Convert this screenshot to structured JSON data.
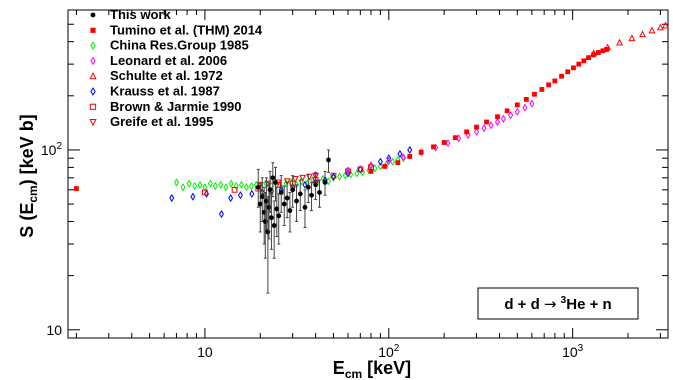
{
  "chart_data": {
    "type": "scatter",
    "title": "",
    "xlabel": {
      "main": "E",
      "sub": "cm",
      "rest": " [keV]"
    },
    "ylabel": {
      "main": "S (E",
      "sub": "cm",
      "rest": ") [keV b]"
    },
    "x_scale": "log",
    "y_scale": "log",
    "xlim": [
      1.8,
      3300
    ],
    "ylim": [
      9,
      600
    ],
    "x_ticks": [
      {
        "value": 10,
        "base": "10",
        "exp": ""
      },
      {
        "value": 100,
        "base": "10",
        "exp": "2"
      },
      {
        "value": 1000,
        "base": "10",
        "exp": "3"
      }
    ],
    "y_ticks": [
      {
        "value": 10,
        "base": "10",
        "exp": ""
      },
      {
        "value": 100,
        "base": "10",
        "exp": "2"
      }
    ],
    "grid": false,
    "legend_position": "top-left",
    "annotation": {
      "pre": "d + d ",
      "arrow": "→",
      "sup": "3",
      "post": "He + n"
    },
    "series": [
      {
        "name": "This work",
        "marker": "dot-filled",
        "color": "#000000",
        "points": [
          [
            19.5,
            62,
            48,
            78
          ],
          [
            20.0,
            50,
            35,
            65
          ],
          [
            20.5,
            55,
            40,
            70
          ],
          [
            21.0,
            45,
            30,
            62
          ],
          [
            21.3,
            40,
            25,
            58
          ],
          [
            21.6,
            52,
            36,
            70
          ],
          [
            22.0,
            35,
            16,
            55
          ],
          [
            22.3,
            48,
            32,
            66
          ],
          [
            22.6,
            60,
            45,
            76
          ],
          [
            23.0,
            42,
            28,
            58
          ],
          [
            23.4,
            70,
            55,
            85
          ],
          [
            23.8,
            38,
            25,
            52
          ],
          [
            24.2,
            66,
            52,
            80
          ],
          [
            24.6,
            47,
            33,
            62
          ],
          [
            25.2,
            43,
            30,
            57
          ],
          [
            26.0,
            58,
            45,
            72
          ],
          [
            27.0,
            50,
            38,
            63
          ],
          [
            28.0,
            54,
            42,
            66
          ],
          [
            29.0,
            46,
            35,
            58
          ],
          [
            30.0,
            60,
            48,
            72
          ],
          [
            31.5,
            52,
            40,
            64
          ],
          [
            33.0,
            57,
            46,
            68
          ],
          [
            35.0,
            48,
            37,
            60
          ],
          [
            36.5,
            62,
            51,
            73
          ],
          [
            38.0,
            56,
            46,
            66
          ],
          [
            40.0,
            64,
            53,
            75
          ],
          [
            42.0,
            58,
            48,
            68
          ],
          [
            45.0,
            66,
            56,
            76
          ],
          [
            47.0,
            88,
            75,
            100
          ]
        ]
      },
      {
        "name": "Tumino et al. (THM) 2014",
        "marker": "square-filled",
        "color": "#ff0000",
        "points": [
          [
            2.0,
            61
          ],
          [
            80,
            76
          ],
          [
            95,
            81
          ],
          [
            112,
            85
          ],
          [
            130,
            92
          ],
          [
            150,
            97
          ],
          [
            175,
            104
          ],
          [
            200,
            110
          ],
          [
            230,
            117
          ],
          [
            265,
            126
          ],
          [
            300,
            134
          ],
          [
            340,
            143
          ],
          [
            390,
            153
          ],
          [
            440,
            165
          ],
          [
            500,
            178
          ],
          [
            560,
            191
          ],
          [
            620,
            204
          ],
          [
            680,
            217
          ],
          [
            740,
            230
          ],
          [
            800,
            242
          ],
          [
            870,
            257
          ],
          [
            940,
            272
          ],
          [
            1010,
            286
          ],
          [
            1080,
            300
          ],
          [
            1150,
            313
          ],
          [
            1220,
            326
          ],
          [
            1300,
            338
          ],
          [
            1380,
            348
          ],
          [
            1460,
            356
          ],
          [
            1530,
            362
          ]
        ]
      },
      {
        "name": "China Res.Group 1985",
        "marker": "diamond-open",
        "color": "#00ee00",
        "points": [
          [
            7.0,
            66
          ],
          [
            7.6,
            62
          ],
          [
            8.2,
            65
          ],
          [
            8.8,
            63
          ],
          [
            9.4,
            64
          ],
          [
            10.0,
            62
          ],
          [
            10.7,
            65
          ],
          [
            11.4,
            63
          ],
          [
            12.2,
            64
          ],
          [
            13.0,
            62
          ],
          [
            13.9,
            65
          ],
          [
            14.8,
            63
          ],
          [
            15.8,
            64
          ],
          [
            16.8,
            62
          ],
          [
            17.9,
            63
          ],
          [
            19.0,
            64
          ],
          [
            20.2,
            62
          ],
          [
            21.5,
            65
          ],
          [
            23.0,
            63
          ],
          [
            24.5,
            64
          ],
          [
            26.0,
            62
          ],
          [
            27.7,
            65
          ],
          [
            29.5,
            66
          ],
          [
            31.5,
            64
          ],
          [
            33.5,
            67
          ],
          [
            36.0,
            65
          ],
          [
            38.5,
            68
          ],
          [
            41.0,
            66
          ],
          [
            44.0,
            69
          ],
          [
            47.0,
            67
          ],
          [
            50.0,
            70
          ],
          [
            54.0,
            71
          ],
          [
            58.0,
            72
          ],
          [
            62.0,
            73
          ],
          [
            67.0,
            74
          ],
          [
            72.0,
            75
          ],
          [
            78.0,
            77
          ],
          [
            84.0,
            79
          ],
          [
            90.0,
            81
          ],
          [
            97.0,
            83
          ],
          [
            105.0,
            86
          ],
          [
            112.0,
            88
          ],
          [
            120.0,
            90
          ]
        ]
      },
      {
        "name": "Leonard et al. 2006",
        "marker": "diamond-open",
        "color": "#ff00ff",
        "points": [
          [
            40,
            72
          ],
          [
            60,
            77
          ],
          [
            80,
            82
          ],
          [
            100,
            87
          ],
          [
            120,
            91
          ],
          [
            150,
            97
          ],
          [
            180,
            103
          ],
          [
            210,
            109
          ],
          [
            240,
            116
          ],
          [
            270,
            121
          ],
          [
            300,
            126
          ],
          [
            330,
            132
          ],
          [
            360,
            137
          ],
          [
            390,
            143
          ],
          [
            420,
            149
          ],
          [
            460,
            156
          ],
          [
            500,
            163
          ],
          [
            550,
            172
          ],
          [
            600,
            181
          ]
        ]
      },
      {
        "name": "Schulte et al. 1972",
        "marker": "triangle-up-open",
        "color": "#ff0000",
        "points": [
          [
            1300,
            345
          ],
          [
            1550,
            372
          ],
          [
            1800,
            395
          ],
          [
            2100,
            418
          ],
          [
            2400,
            440
          ],
          [
            2700,
            462
          ],
          [
            3000,
            480
          ],
          [
            3200,
            492
          ]
        ]
      },
      {
        "name": "Krauss et al. 1987",
        "marker": "diamond-open",
        "color": "#0000ff",
        "points": [
          [
            6.6,
            54
          ],
          [
            8.6,
            55
          ],
          [
            10.2,
            57
          ],
          [
            12.3,
            44
          ],
          [
            13.8,
            54
          ],
          [
            15.6,
            56
          ],
          [
            18.0,
            57
          ],
          [
            20.5,
            58
          ],
          [
            23.0,
            59
          ],
          [
            26.0,
            60
          ],
          [
            30.0,
            62
          ],
          [
            35.0,
            64
          ],
          [
            40.0,
            66
          ],
          [
            45.0,
            68
          ],
          [
            50.0,
            71
          ],
          [
            60.0,
            74
          ],
          [
            70.0,
            78
          ],
          [
            80.0,
            82
          ],
          [
            90.0,
            86
          ],
          [
            100.0,
            90
          ],
          [
            115.0,
            95
          ],
          [
            130.0,
            100
          ]
        ]
      },
      {
        "name": "Brown & Jarmie 1990",
        "marker": "square-open",
        "color": "#ff0000",
        "points": [
          [
            10.0,
            58
          ],
          [
            14.5,
            60
          ],
          [
            19.5,
            61
          ],
          [
            25.0,
            64
          ],
          [
            30.0,
            65
          ],
          [
            40.0,
            68
          ],
          [
            50.0,
            72
          ],
          [
            60.0,
            76
          ],
          [
            70.0,
            78
          ],
          [
            80.0,
            80
          ]
        ]
      },
      {
        "name": "Greife et al. 1995",
        "marker": "triangle-down-open",
        "color": "#ff0000",
        "points": [
          [
            20.0,
            64
          ],
          [
            22.0,
            65
          ],
          [
            25.0,
            66
          ],
          [
            28.0,
            67
          ],
          [
            31.0,
            69
          ],
          [
            34.0,
            70
          ],
          [
            37.0,
            71
          ],
          [
            40.0,
            72
          ]
        ]
      }
    ]
  }
}
